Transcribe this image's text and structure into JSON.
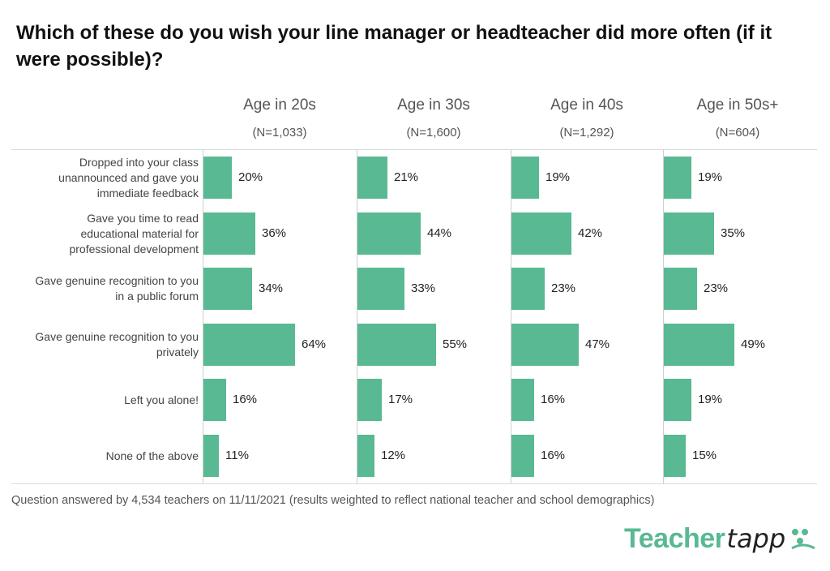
{
  "chart_data": {
    "type": "bar",
    "title": "Which of these do you wish your line manager or headteacher did more often (if it were possible)?",
    "categories": [
      "Dropped into your class unannounced and gave you immediate feedback",
      "Gave you time to read educational material for professional development",
      "Gave genuine recognition to you in a public forum",
      "Gave genuine recognition to you privately",
      "Left you alone!",
      "None of the above"
    ],
    "category_lines": [
      [
        "Dropped into your class",
        "unannounced and gave you",
        "immediate feedback"
      ],
      [
        "Gave you time to read",
        "educational material for",
        "professional development"
      ],
      [
        "Gave genuine recognition to you",
        "in a public forum"
      ],
      [
        "Gave genuine recognition to you",
        "privately"
      ],
      [
        "Left you alone!"
      ],
      [
        "None of the above"
      ]
    ],
    "series": [
      {
        "name": "Age in 20s",
        "n_label": "(N=1,033)",
        "values": [
          20,
          36,
          34,
          64,
          16,
          11
        ]
      },
      {
        "name": "Age in 30s",
        "n_label": "(N=1,600)",
        "values": [
          21,
          44,
          33,
          55,
          17,
          12
        ]
      },
      {
        "name": "Age in 40s",
        "n_label": "(N=1,292)",
        "values": [
          19,
          42,
          23,
          47,
          16,
          16
        ]
      },
      {
        "name": "Age in 50s+",
        "n_label": "(N=604)",
        "values": [
          19,
          35,
          23,
          49,
          19,
          15
        ]
      }
    ],
    "unit": "%",
    "xlim": [
      0,
      100
    ],
    "bar_color": "#58b992"
  },
  "footnote": "Question answered by 4,534 teachers on 11/11/2021 (results weighted to reflect national teacher and school demographics)",
  "logo": {
    "main": "Teacher",
    "tail": "tapp",
    "color": "#58b992",
    "tail_color": "#222222"
  }
}
